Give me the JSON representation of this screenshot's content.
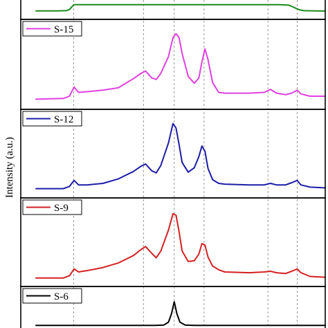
{
  "chart_data": {
    "type": "line",
    "layout": "stacked-panels",
    "ylabel": "Intensity (a.u.)",
    "xlabel": "",
    "x_units": "arbitrary (axis not visible in crop)",
    "xlim": [
      0,
      100
    ],
    "ylim": [
      0,
      1
    ],
    "grid": "vertical dashed lines",
    "reference_lines_x": [
      17.4,
      40.3,
      50.4,
      60.2,
      81.2,
      90.8
    ],
    "panels": [
      {
        "name": "",
        "color": "#1a8a1a",
        "legend": false,
        "partial": true,
        "x": [
          5,
          12,
          15,
          16,
          16.7,
          17.5,
          60,
          85,
          88,
          89.2,
          90.3,
          91.5,
          93,
          98,
          100
        ],
        "values": [
          0.3,
          0.3,
          0.33,
          0.45,
          0.7,
          0.95,
          0.95,
          0.95,
          0.9,
          0.74,
          0.58,
          0.42,
          0.33,
          0.29,
          0.29
        ]
      },
      {
        "name": "S-15",
        "color": "#e040e0",
        "legend": true,
        "x": [
          5,
          14,
          16,
          17.5,
          19,
          22,
          27,
          32,
          37,
          39.5,
          41,
          43,
          44.5,
          46,
          48.5,
          50,
          51,
          52,
          53,
          55,
          57,
          58.5,
          59.5,
          60.5,
          61.5,
          63,
          65,
          67,
          75,
          80,
          82,
          84,
          87,
          89,
          90.8,
          92,
          95,
          100
        ],
        "values": [
          0.06,
          0.07,
          0.1,
          0.22,
          0.15,
          0.16,
          0.18,
          0.21,
          0.33,
          0.4,
          0.43,
          0.34,
          0.32,
          0.4,
          0.62,
          0.87,
          0.92,
          0.87,
          0.66,
          0.36,
          0.27,
          0.34,
          0.55,
          0.72,
          0.58,
          0.28,
          0.15,
          0.14,
          0.14,
          0.15,
          0.19,
          0.14,
          0.12,
          0.14,
          0.18,
          0.13,
          0.1,
          0.1
        ]
      },
      {
        "name": "S-12",
        "color": "#1c1ca8",
        "legend": true,
        "x": [
          5,
          14,
          16,
          17.5,
          19,
          22,
          27,
          32,
          37,
          39.5,
          41,
          43,
          44.5,
          46,
          48.5,
          50,
          51,
          52,
          53,
          55,
          57,
          58.5,
          59.5,
          60.5,
          61.5,
          63,
          65,
          67,
          75,
          80,
          82,
          84,
          87,
          89,
          90.8,
          92,
          95,
          100
        ],
        "values": [
          0.05,
          0.05,
          0.08,
          0.16,
          0.1,
          0.1,
          0.12,
          0.18,
          0.28,
          0.35,
          0.38,
          0.29,
          0.26,
          0.36,
          0.66,
          0.92,
          0.86,
          0.64,
          0.4,
          0.27,
          0.33,
          0.48,
          0.62,
          0.55,
          0.32,
          0.17,
          0.12,
          0.11,
          0.1,
          0.1,
          0.12,
          0.1,
          0.1,
          0.13,
          0.16,
          0.1,
          0.07,
          0.06
        ]
      },
      {
        "name": "S-9",
        "color": "#d42020",
        "legend": true,
        "x": [
          5,
          14,
          16,
          17.5,
          19,
          22,
          27,
          32,
          37,
          39.5,
          41,
          43,
          44.5,
          46,
          48.5,
          50,
          51,
          52,
          53,
          55,
          57,
          58.5,
          59.5,
          60.5,
          61.5,
          63,
          65,
          67,
          75,
          80,
          82,
          84,
          87,
          89,
          90.8,
          92,
          95,
          100
        ],
        "values": [
          0.04,
          0.04,
          0.07,
          0.16,
          0.12,
          0.14,
          0.18,
          0.24,
          0.34,
          0.42,
          0.46,
          0.37,
          0.31,
          0.4,
          0.68,
          0.9,
          0.88,
          0.66,
          0.4,
          0.26,
          0.27,
          0.36,
          0.5,
          0.48,
          0.32,
          0.2,
          0.15,
          0.12,
          0.11,
          0.12,
          0.13,
          0.11,
          0.1,
          0.13,
          0.16,
          0.11,
          0.06,
          0.05
        ]
      },
      {
        "name": "S-6",
        "color": "#000000",
        "legend": true,
        "partial": true,
        "x": [
          5,
          44,
          47,
          48.5,
          49.5,
          50.4,
          51.3,
          52.3,
          54,
          57,
          100
        ],
        "values": [
          0.04,
          0.04,
          0.05,
          0.14,
          0.4,
          0.78,
          0.4,
          0.14,
          0.05,
          0.04,
          0.04
        ]
      }
    ]
  }
}
